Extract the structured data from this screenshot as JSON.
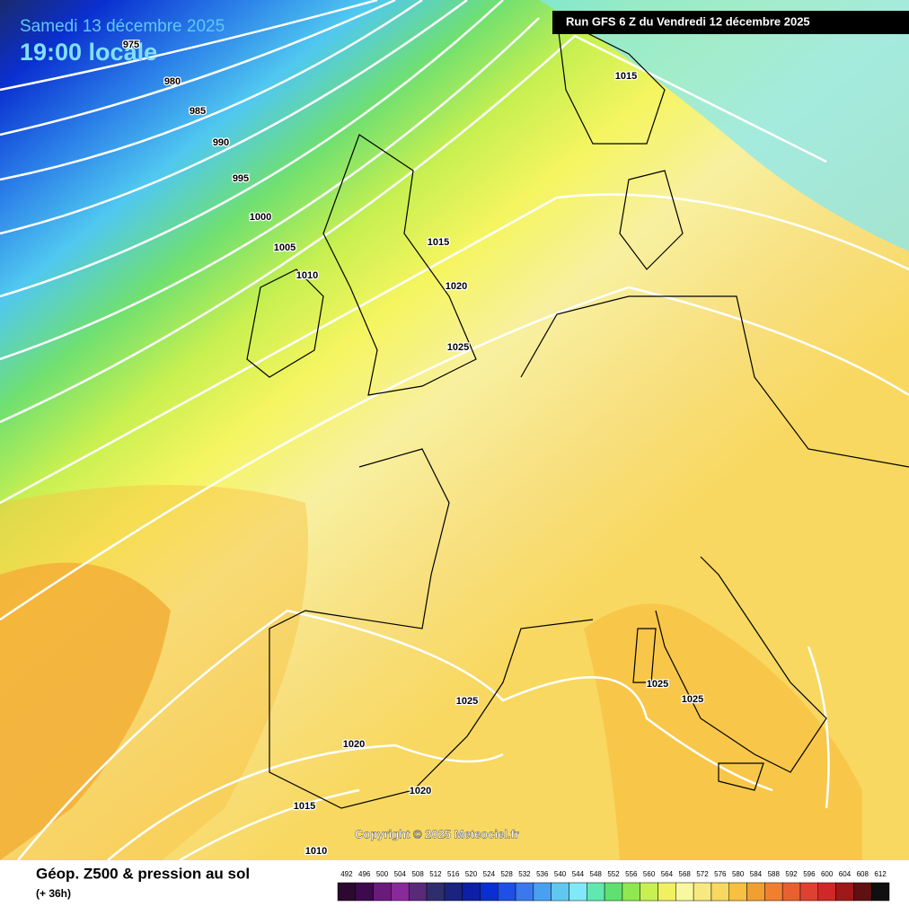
{
  "header": {
    "date": "Samedi 13 décembre 2025",
    "time": "19:00 locale",
    "run": "Run GFS 6 Z du Vendredi 12 décembre 2025"
  },
  "isobar_labels": [
    975,
    980,
    985,
    990,
    995,
    1000,
    1005,
    1010,
    1015,
    1020,
    1025,
    1015,
    1025,
    1025,
    1025,
    1020,
    1020,
    1015,
    1010
  ],
  "copyright": "Copyright © 2025 Meteociel.fr",
  "legend": {
    "title": "Géop. Z500 & pression au sol",
    "subtitle": "(+ 36h)",
    "scale": [
      492,
      496,
      500,
      504,
      508,
      512,
      516,
      520,
      524,
      528,
      532,
      536,
      540,
      544,
      548,
      552,
      556,
      560,
      564,
      568,
      572,
      576,
      580,
      584,
      588,
      592,
      596,
      600,
      604,
      608,
      612
    ],
    "colors": [
      "#2a0a2e",
      "#3d0a4d",
      "#6a1a7a",
      "#8a2a9a",
      "#5a2a7a",
      "#2e2e6e",
      "#1a237e",
      "#0d1fa8",
      "#0a2fd0",
      "#1e50e8",
      "#3a78f0",
      "#4aa0f0",
      "#60c8f0",
      "#80e8f8",
      "#60e8b0",
      "#60e070",
      "#90e850",
      "#c8f050",
      "#f0f060",
      "#f8f8a0",
      "#f8e880",
      "#f8d860",
      "#f8c040",
      "#f0a030",
      "#f08030",
      "#e86030",
      "#e04030",
      "#d02828",
      "#a01818",
      "#601010",
      "#101010"
    ]
  }
}
